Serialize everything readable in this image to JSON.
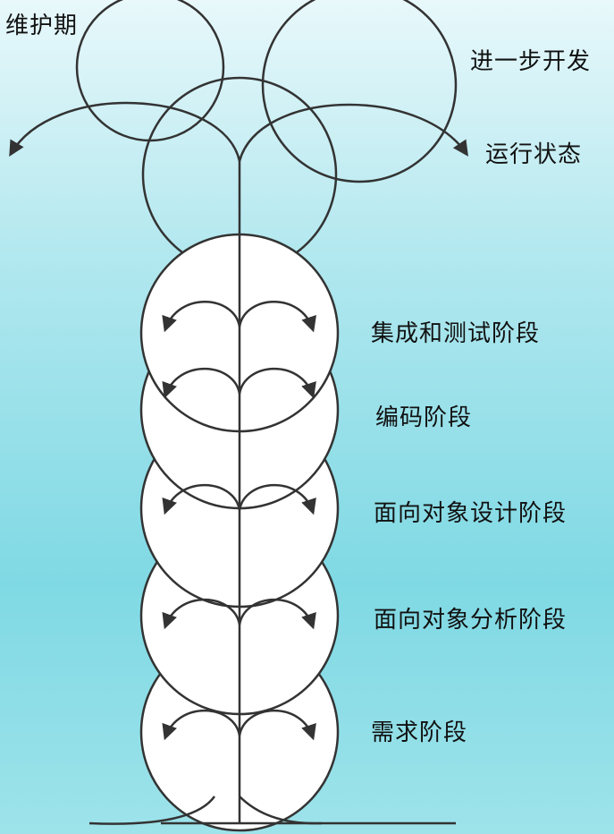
{
  "labels": {
    "maintenance": "维护期",
    "further_dev": "进一步开发",
    "operation": "运行状态",
    "integration_test": "集成和测试阶段",
    "coding": "编码阶段",
    "oo_design": "面向对象设计阶段",
    "oo_analysis": "面向对象分析阶段",
    "requirements": "需求阶段"
  },
  "colors": {
    "stroke": "#333333",
    "circle_fill": "#ffffff",
    "arrow_fill": "#333333"
  }
}
